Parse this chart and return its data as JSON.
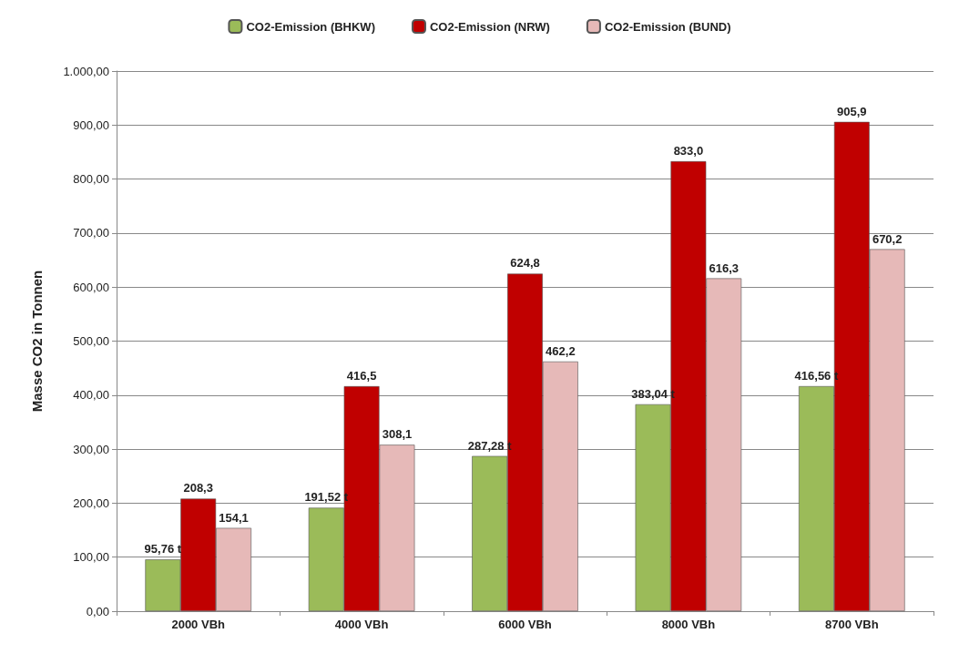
{
  "chart_data": {
    "type": "bar",
    "ylabel": "Masse CO2 in Tonnen",
    "categories": [
      "2000 VBh",
      "4000 VBh",
      "6000 VBh",
      "8000 VBh",
      "8700 VBh"
    ],
    "series": [
      {
        "name": "CO2-Emission (BHKW)",
        "color": "#9bbb59",
        "values": [
          95.76,
          191.52,
          287.28,
          383.04,
          416.56
        ],
        "value_labels": [
          "95,76 t",
          "191,52 t",
          "287,28 t",
          "383,04 t",
          "416,56 t"
        ]
      },
      {
        "name": "CO2-Emission (NRW)",
        "color": "#c00000",
        "values": [
          208.3,
          416.5,
          624.8,
          833.0,
          905.9
        ],
        "value_labels": [
          "208,3",
          "416,5",
          "624,8",
          "833,0",
          "905,9"
        ]
      },
      {
        "name": "CO2-Emission (BUND)",
        "color": "#e6b9b8",
        "values": [
          154.1,
          308.1,
          462.2,
          616.3,
          670.2
        ],
        "value_labels": [
          "154,1",
          "308,1",
          "462,2",
          "616,3",
          "670,2"
        ]
      }
    ],
    "ylim": [
      0,
      1000
    ],
    "yticks": [
      {
        "value": 0,
        "label": "0,00"
      },
      {
        "value": 100,
        "label": "100,00"
      },
      {
        "value": 200,
        "label": "200,00"
      },
      {
        "value": 300,
        "label": "300,00"
      },
      {
        "value": 400,
        "label": "400,00"
      },
      {
        "value": 500,
        "label": "500,00"
      },
      {
        "value": 600,
        "label": "600,00"
      },
      {
        "value": 700,
        "label": "700,00"
      },
      {
        "value": 800,
        "label": "800,00"
      },
      {
        "value": 900,
        "label": "900,00"
      },
      {
        "value": 1000,
        "label": "1.000,00"
      }
    ],
    "grid": "y",
    "legend": "top"
  }
}
